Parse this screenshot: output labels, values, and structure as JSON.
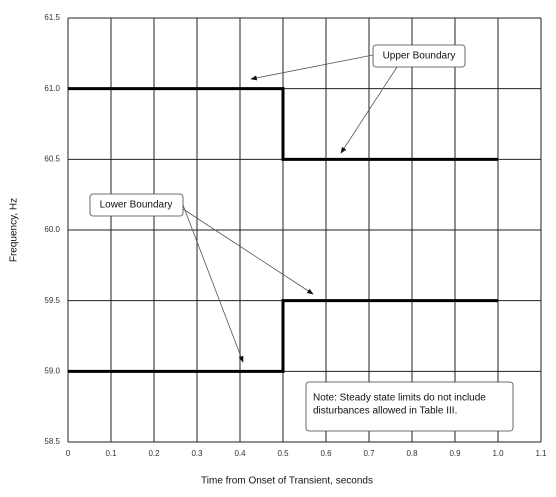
{
  "chart_data": {
    "type": "line",
    "xlabel": "Time from Onset of Transient, seconds",
    "ylabel": "Frequency, Hz",
    "series": [
      {
        "name": "Upper Boundary",
        "color": "#000000",
        "x": [
          0,
          0.5,
          0.5,
          1.0
        ],
        "values": [
          61.0,
          61.0,
          60.5,
          60.5
        ]
      },
      {
        "name": "Lower Boundary",
        "color": "#000000",
        "x": [
          0,
          0.5,
          0.5,
          1.0
        ],
        "values": [
          59.0,
          59.0,
          59.5,
          59.5
        ]
      }
    ],
    "note": [
      "Note: Steady state limits do not include",
      "disturbances allowed in Table III."
    ],
    "xlim": [
      0,
      1.1
    ],
    "xticks": [
      0,
      0.1,
      0.2,
      0.3,
      0.4,
      0.5,
      0.6,
      0.7,
      0.8,
      0.9,
      {
        "value": 1,
        "label": "1.0"
      },
      1.1
    ],
    "ylim": [
      58.5,
      61.5
    ],
    "yticks": [
      58.5,
      {
        "value": 59,
        "label": "59.0"
      },
      59.5,
      {
        "value": 60,
        "label": "60.0"
      },
      60.5,
      {
        "value": 61,
        "label": "61.0"
      },
      61.5
    ],
    "grid": true
  }
}
